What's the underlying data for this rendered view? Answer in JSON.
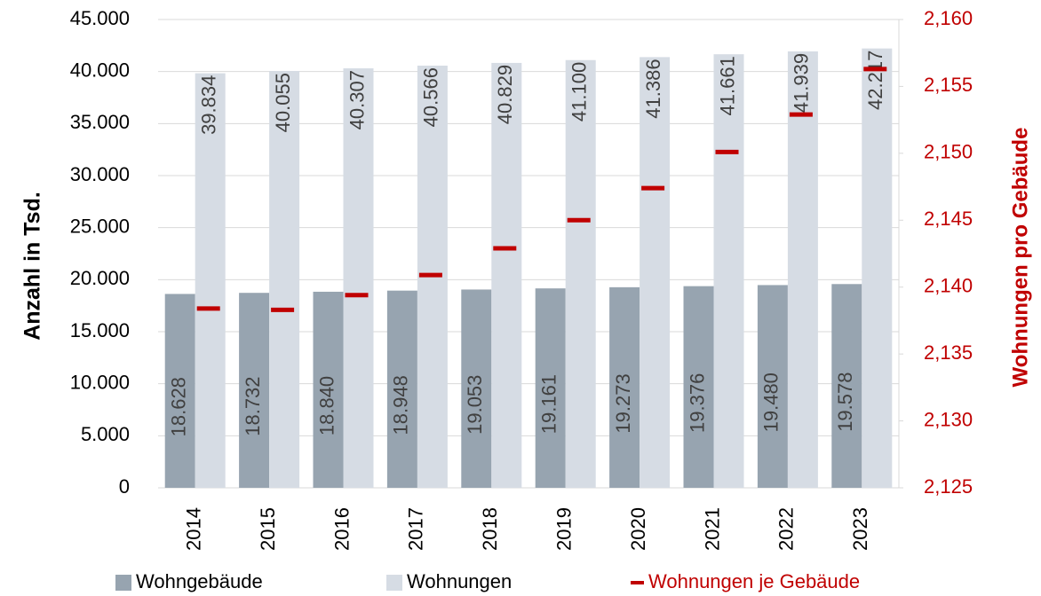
{
  "chart_data": {
    "type": "bar",
    "categories": [
      "2014",
      "2015",
      "2016",
      "2017",
      "2018",
      "2019",
      "2020",
      "2021",
      "2022",
      "2023"
    ],
    "series": [
      {
        "name": "Wohngebäude",
        "type": "bar",
        "color": "#97a4b0",
        "values": [
          18628,
          18732,
          18840,
          18948,
          19053,
          19161,
          19273,
          19376,
          19480,
          19578
        ],
        "value_labels": [
          "18.628",
          "18.732",
          "18.840",
          "18.948",
          "19.053",
          "19.161",
          "19.273",
          "19.376",
          "19.480",
          "19.578"
        ]
      },
      {
        "name": "Wohnungen",
        "type": "bar",
        "color": "#d6dce4",
        "values": [
          39834,
          40055,
          40307,
          40566,
          40829,
          41100,
          41386,
          41661,
          41939,
          42217
        ],
        "value_labels": [
          "39.834",
          "40.055",
          "40.307",
          "40.566",
          "40.829",
          "41.100",
          "41.386",
          "41.661",
          "41.939",
          "42.217"
        ]
      },
      {
        "name": "Wohnungen je Gebäude",
        "type": "marker",
        "axis": "y2",
        "color": "#c00000",
        "values": [
          2.1384,
          2.1383,
          2.1394,
          2.1409,
          2.1429,
          2.145,
          2.1474,
          2.1501,
          2.1529,
          2.1563
        ]
      }
    ],
    "ylabel": "Anzahl in Tsd.",
    "y2label": "Wohnungen pro Gebäude",
    "ylim": [
      0,
      45000
    ],
    "yticks": [
      0,
      {
        "value": 5000,
        "label": "5.000"
      },
      {
        "value": 10000,
        "label": "10.000"
      },
      {
        "value": 15000,
        "label": "15.000"
      },
      {
        "value": 20000,
        "label": "20.000"
      },
      {
        "value": 25000,
        "label": "25.000"
      },
      {
        "value": 30000,
        "label": "30.000"
      },
      {
        "value": 35000,
        "label": "35.000"
      },
      {
        "value": 40000,
        "label": "40.000"
      },
      {
        "value": 45000,
        "label": "45.000"
      }
    ],
    "y2lim": [
      2.125,
      2.16
    ],
    "y2ticks": [
      {
        "value": 2.125,
        "label": "2,125"
      },
      {
        "value": 2.13,
        "label": "2,130"
      },
      {
        "value": 2.135,
        "label": "2,135"
      },
      {
        "value": 2.14,
        "label": "2,140"
      },
      {
        "value": 2.145,
        "label": "2,145"
      },
      {
        "value": 2.15,
        "label": "2,150"
      },
      {
        "value": 2.155,
        "label": "2,155"
      },
      {
        "value": 2.16,
        "label": "2,160"
      }
    ],
    "grid": true,
    "legend": "bottom"
  }
}
